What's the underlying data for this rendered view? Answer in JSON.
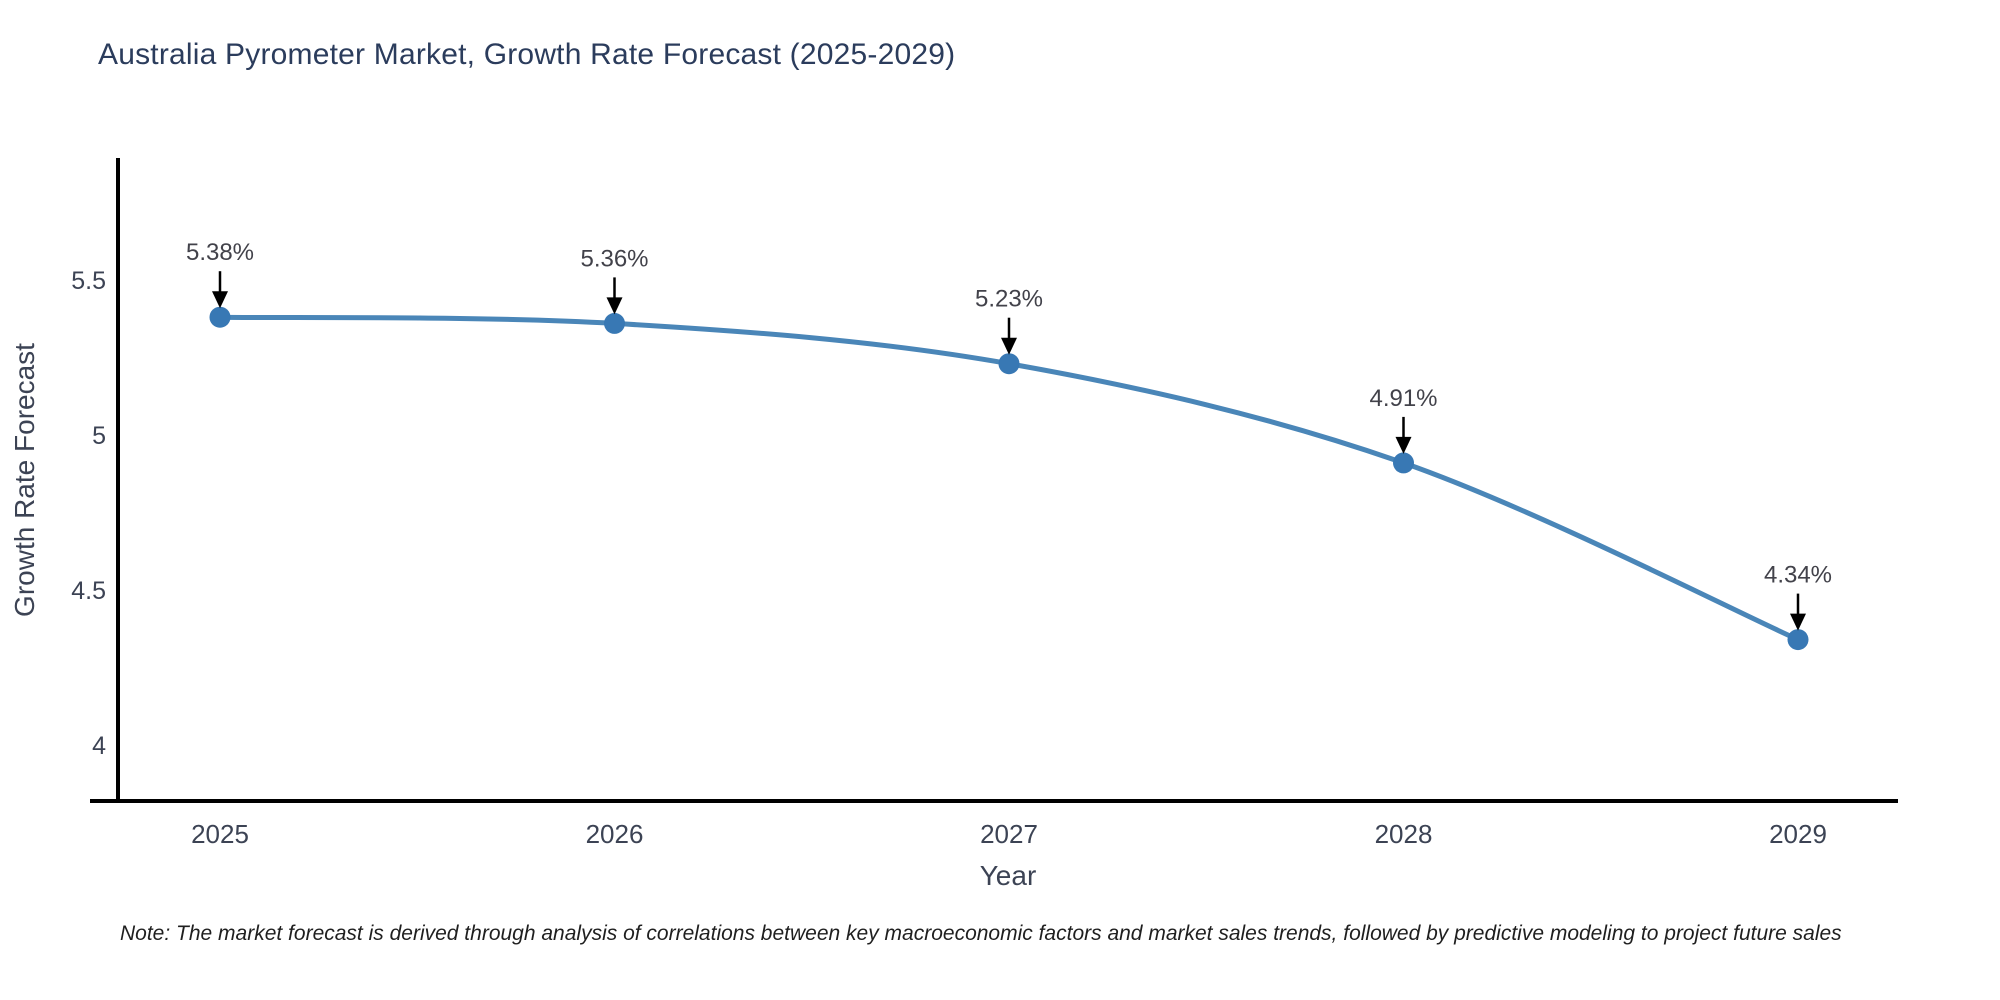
{
  "title": "Australia Pyrometer Market, Growth Rate Forecast (2025-2029)",
  "note": "Note: The market forecast is derived through analysis of correlations between key macroeconomic factors and market sales trends, followed by predictive modeling to project future sales",
  "chart_data": {
    "type": "line",
    "title": "Australia Pyrometer Market, Growth Rate Forecast (2025-2029)",
    "x": [
      2025,
      2026,
      2027,
      2028,
      2029
    ],
    "series": [
      {
        "name": "Growth Rate Forecast",
        "values": [
          5.38,
          5.36,
          5.23,
          4.91,
          4.34
        ]
      }
    ],
    "point_labels": [
      "5.38%",
      "5.36%",
      "5.23%",
      "4.91%",
      "4.34%"
    ],
    "xlabel": "Year",
    "ylabel": "Growth Rate Forecast",
    "yticks": [
      4,
      4.5,
      5,
      5.5
    ],
    "ylim": [
      3.82,
      5.89
    ],
    "grid": false,
    "legend": "none",
    "line_shape": "spline",
    "annotations": "value labels with down arrows pointing at each marker",
    "colors": {
      "line": "#4a86b8",
      "marker": "#3878b4",
      "axis": "#000000",
      "title_text": "#2b3c5c",
      "tick_text": "#3c4354",
      "annotation_text": "#42424a",
      "arrow": "#000000",
      "background": "#ffffff"
    }
  }
}
